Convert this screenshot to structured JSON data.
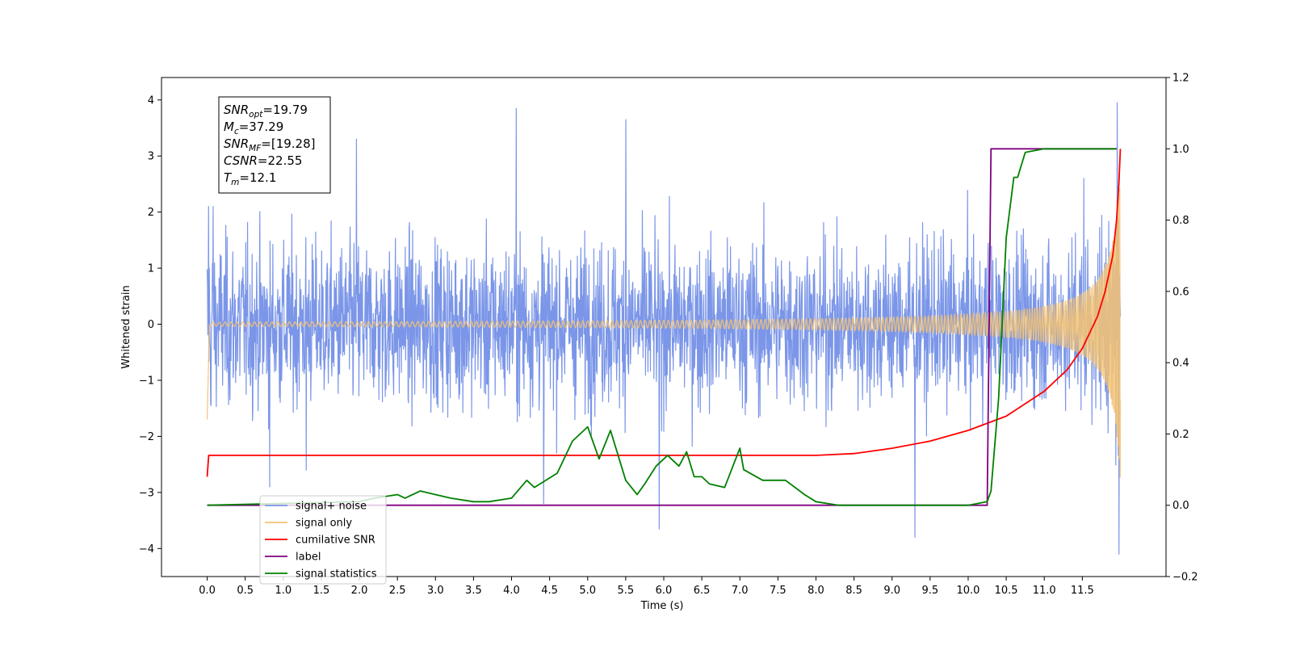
{
  "chart_data": {
    "type": "line",
    "xlabel": "Time (s)",
    "ylabel": "Whitened strain",
    "xlim": [
      -0.6,
      12.6
    ],
    "ylim": [
      -4.5,
      4.4
    ],
    "y2lim": [
      -0.2,
      1.2
    ],
    "x_ticks": [
      0.0,
      0.5,
      1.0,
      1.5,
      2.0,
      2.5,
      3.0,
      3.5,
      4.0,
      4.5,
      5.0,
      5.5,
      6.0,
      6.5,
      7.0,
      7.5,
      8.0,
      8.5,
      9.0,
      9.5,
      10.0,
      10.5,
      11.0,
      11.5
    ],
    "x_tick_labels": [
      "0.0",
      "0.5",
      "1.0",
      "1.5",
      "2.0",
      "2.5",
      "3.0",
      "3.5",
      "4.0",
      "4.5",
      "5.0",
      "5.5",
      "6.0",
      "6.5",
      "7.0",
      "7.5",
      "8.0",
      "8.5",
      "9.0",
      "9.5",
      "10.0",
      "10.5",
      "11.0",
      "11.5"
    ],
    "y_ticks": [
      -4,
      -3,
      -2,
      -1,
      0,
      1,
      2,
      3,
      4
    ],
    "y_tick_labels": [
      "−4",
      "−3",
      "−2",
      "−1",
      "0",
      "1",
      "2",
      "3",
      "4"
    ],
    "y2_ticks": [
      -0.2,
      0.0,
      0.2,
      0.4,
      0.6,
      0.8,
      1.0,
      1.2
    ],
    "y2_tick_labels": [
      "−0.2",
      "0.0",
      "0.2",
      "0.4",
      "0.6",
      "0.8",
      "1.0",
      "1.2"
    ],
    "grid": false,
    "legend_position": "bottom-left",
    "legend": [
      "signal+ noise",
      "signal only",
      "cumilative SNR",
      "label",
      "signal statistics"
    ],
    "annotation_lines": [
      {
        "sym": "SNR",
        "sub": "opt",
        "value": "=19.79"
      },
      {
        "sym": "M",
        "sub": "c",
        "value": "=37.29"
      },
      {
        "sym": "SNR",
        "sub": "MF",
        "value": "=[19.28]"
      },
      {
        "sym": "CSNR",
        "sub": "",
        "value": "=22.55"
      },
      {
        "sym": "T",
        "sub": "m",
        "value": "=12.1"
      }
    ],
    "series": [
      {
        "name": "signal+ noise",
        "axis": "left",
        "color": "#7b96e8",
        "style": "noise",
        "t_range": [
          0.0,
          12.0
        ],
        "envelope": 1.0,
        "approx_range": [
          -4.1,
          3.95
        ],
        "spikes": [
          [
            0.02,
            2.1
          ],
          [
            0.03,
            1.0
          ],
          [
            0.05,
            -1.45
          ],
          [
            0.08,
            2.1
          ],
          [
            0.82,
            -2.9
          ],
          [
            1.3,
            -2.6
          ],
          [
            1.96,
            3.3
          ],
          [
            4.06,
            3.85
          ],
          [
            4.42,
            -3.2
          ],
          [
            5.5,
            3.65
          ],
          [
            5.94,
            -3.65
          ],
          [
            9.3,
            -3.8
          ],
          [
            11.52,
            2.6
          ],
          [
            11.96,
            3.95
          ],
          [
            11.98,
            -4.1
          ]
        ]
      },
      {
        "name": "signal only",
        "axis": "left",
        "color": "#f5c372",
        "style": "chirp",
        "t_range": [
          0.0,
          12.0
        ],
        "start_glitch": [
          0.0,
          -1.7
        ],
        "amplitude_at_end": 2.8,
        "merger_time": 12.1
      },
      {
        "name": "cumilative SNR",
        "axis": "right",
        "x": [
          0.0,
          0.02,
          0.04,
          8.0,
          8.5,
          9.0,
          9.5,
          10.0,
          10.5,
          11.0,
          11.3,
          11.5,
          11.7,
          11.8,
          11.9,
          11.95,
          11.98,
          12.0
        ],
        "y": [
          0.08,
          0.14,
          0.14,
          0.14,
          0.145,
          0.16,
          0.18,
          0.21,
          0.25,
          0.32,
          0.38,
          0.44,
          0.53,
          0.6,
          0.7,
          0.8,
          0.9,
          1.0
        ],
        "color": "#ff0000"
      },
      {
        "name": "label",
        "axis": "right",
        "x": [
          0.0,
          10.25,
          10.3,
          11.95
        ],
        "y": [
          0.0,
          0.0,
          1.0,
          1.0
        ],
        "color": "#800080"
      },
      {
        "name": "signal statistics",
        "axis": "right",
        "x": [
          0.0,
          2.0,
          2.2,
          2.5,
          2.6,
          2.8,
          3.0,
          3.2,
          3.5,
          3.7,
          4.0,
          4.2,
          4.3,
          4.6,
          4.8,
          5.0,
          5.15,
          5.3,
          5.5,
          5.65,
          5.75,
          5.9,
          6.05,
          6.2,
          6.3,
          6.4,
          6.5,
          6.6,
          6.8,
          7.0,
          7.05,
          7.3,
          7.6,
          7.85,
          8.0,
          8.3,
          8.6,
          9.0,
          10.0,
          10.25,
          10.3,
          10.4,
          10.5,
          10.6,
          10.65,
          10.75,
          11.0,
          11.95
        ],
        "y": [
          0.0,
          0.01,
          0.02,
          0.03,
          0.02,
          0.04,
          0.03,
          0.02,
          0.01,
          0.01,
          0.02,
          0.07,
          0.05,
          0.09,
          0.18,
          0.22,
          0.13,
          0.21,
          0.07,
          0.03,
          0.06,
          0.11,
          0.14,
          0.11,
          0.15,
          0.08,
          0.08,
          0.06,
          0.05,
          0.16,
          0.1,
          0.07,
          0.07,
          0.03,
          0.01,
          0.0,
          0.0,
          0.0,
          0.0,
          0.01,
          0.04,
          0.3,
          0.75,
          0.92,
          0.92,
          0.99,
          1.0,
          1.0
        ],
        "color": "#008000"
      }
    ]
  }
}
